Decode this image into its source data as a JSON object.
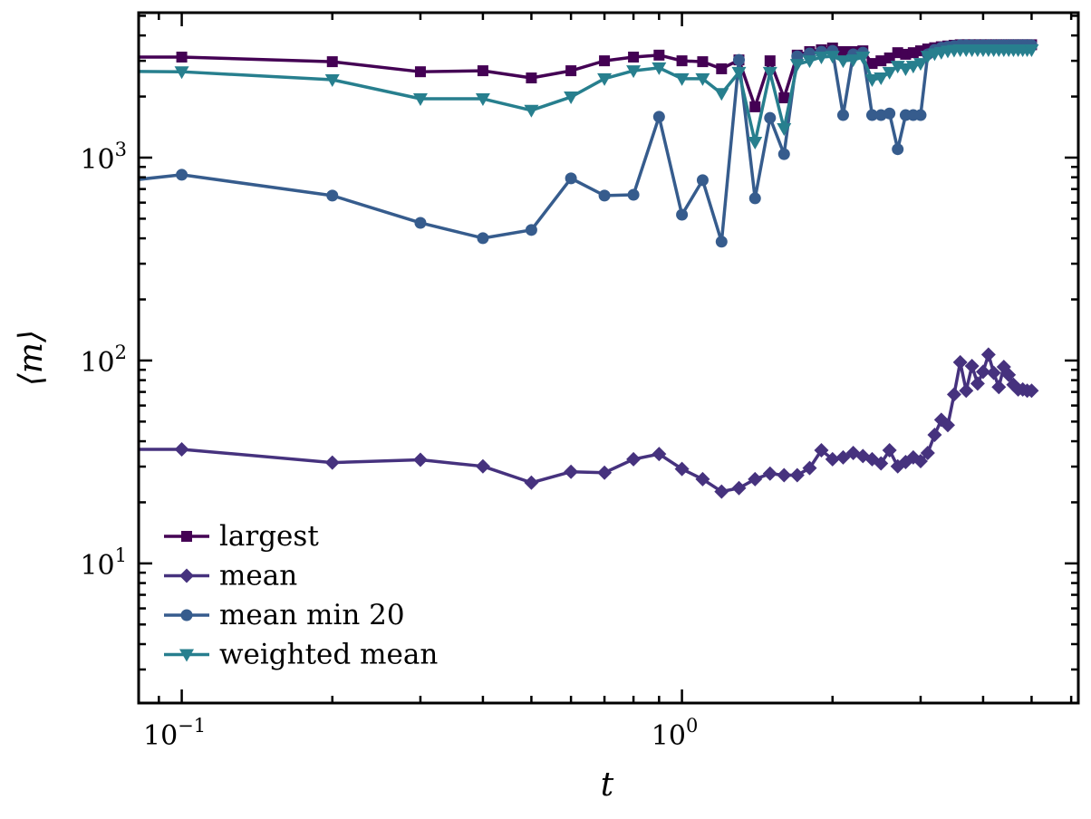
{
  "chart_data": {
    "type": "line",
    "title": "",
    "xlabel": "t",
    "ylabel": "⟨m⟩",
    "xscale": "log",
    "yscale": "log",
    "xlim": [
      0.082,
      6.2
    ],
    "ylim": [
      2.05,
      5180
    ],
    "grid": false,
    "legend_position": "bottom-left",
    "x_ticks": [
      {
        "value": 0.1,
        "base": "10",
        "exp": "−1"
      },
      {
        "value": 1,
        "base": "10",
        "exp": "0"
      }
    ],
    "y_ticks": [
      {
        "value": 10,
        "base": "10",
        "exp": "1"
      },
      {
        "value": 100,
        "base": "10",
        "exp": "2"
      },
      {
        "value": 1000,
        "base": "10",
        "exp": "3"
      }
    ],
    "x": [
      0.05,
      0.1,
      0.2,
      0.3,
      0.4,
      0.5,
      0.6,
      0.7,
      0.8,
      0.9,
      1.0,
      1.1,
      1.2,
      1.3,
      1.4,
      1.5,
      1.6,
      1.7,
      1.8,
      1.9,
      2.0,
      2.1,
      2.2,
      2.3,
      2.4,
      2.5,
      2.6,
      2.7,
      2.8,
      2.9,
      3.0,
      3.1,
      3.2,
      3.3,
      3.4,
      3.5,
      3.6,
      3.7,
      3.8,
      3.9,
      4.0,
      4.1,
      4.2,
      4.3,
      4.4,
      4.5,
      4.6,
      4.7,
      4.8,
      4.9,
      5.0
    ],
    "series": [
      {
        "name": "largest",
        "color": "#440154",
        "marker": "square",
        "values": [
          3130,
          3130,
          2970,
          2650,
          2680,
          2470,
          2680,
          3000,
          3130,
          3200,
          3000,
          2970,
          2740,
          3030,
          1780,
          3000,
          1970,
          3200,
          3330,
          3400,
          3470,
          3330,
          3330,
          3360,
          2910,
          3000,
          3100,
          3290,
          3230,
          3290,
          3360,
          3430,
          3480,
          3520,
          3550,
          3580,
          3600,
          3600,
          3600,
          3600,
          3600,
          3600,
          3600,
          3600,
          3600,
          3600,
          3600,
          3600,
          3600,
          3600,
          3600
        ]
      },
      {
        "name": "mean",
        "color": "#46327e",
        "marker": "diamond",
        "values": [
          36.5,
          36.5,
          31.4,
          32.4,
          30.1,
          25,
          28.3,
          28,
          32.6,
          34.6,
          29.2,
          26,
          22.6,
          23.5,
          26,
          27.7,
          27.2,
          27.2,
          29.5,
          36.1,
          32.6,
          33.3,
          35,
          33.8,
          32.6,
          31.1,
          36.1,
          30.1,
          31.6,
          33.3,
          31.9,
          35,
          43,
          51,
          48,
          68,
          98,
          71,
          94,
          77,
          88,
          107,
          87,
          74,
          93,
          85,
          76,
          72,
          72,
          71,
          71
        ]
      },
      {
        "name": "mean min 20",
        "color": "#365c8d",
        "marker": "circle",
        "values": [
          684,
          823,
          650,
          477,
          401,
          440,
          790,
          650,
          656,
          1590,
          523,
          774,
          385,
          3030,
          630,
          1570,
          1040,
          3160,
          3260,
          3330,
          3360,
          1620,
          3230,
          3290,
          1620,
          1620,
          1650,
          1100,
          1620,
          1620,
          1620,
          3230,
          3400,
          3480,
          3520,
          3550,
          3580,
          3580,
          3580,
          3580,
          3580,
          3580,
          3580,
          3580,
          3580,
          3580,
          3580,
          3580,
          3580,
          3580,
          3580
        ]
      },
      {
        "name": "weighted mean",
        "color": "#277f8e",
        "marker": "triangle-down",
        "values": [
          2680,
          2650,
          2420,
          1950,
          1950,
          1710,
          1990,
          2450,
          2680,
          2770,
          2450,
          2450,
          2070,
          2630,
          1190,
          2630,
          1390,
          2880,
          3000,
          3130,
          3160,
          3000,
          3030,
          3130,
          2420,
          2470,
          2630,
          2820,
          2740,
          2820,
          2910,
          3160,
          3250,
          3300,
          3350,
          3380,
          3400,
          3400,
          3400,
          3400,
          3400,
          3400,
          3400,
          3400,
          3400,
          3400,
          3400,
          3400,
          3400,
          3400,
          3400
        ]
      }
    ]
  }
}
